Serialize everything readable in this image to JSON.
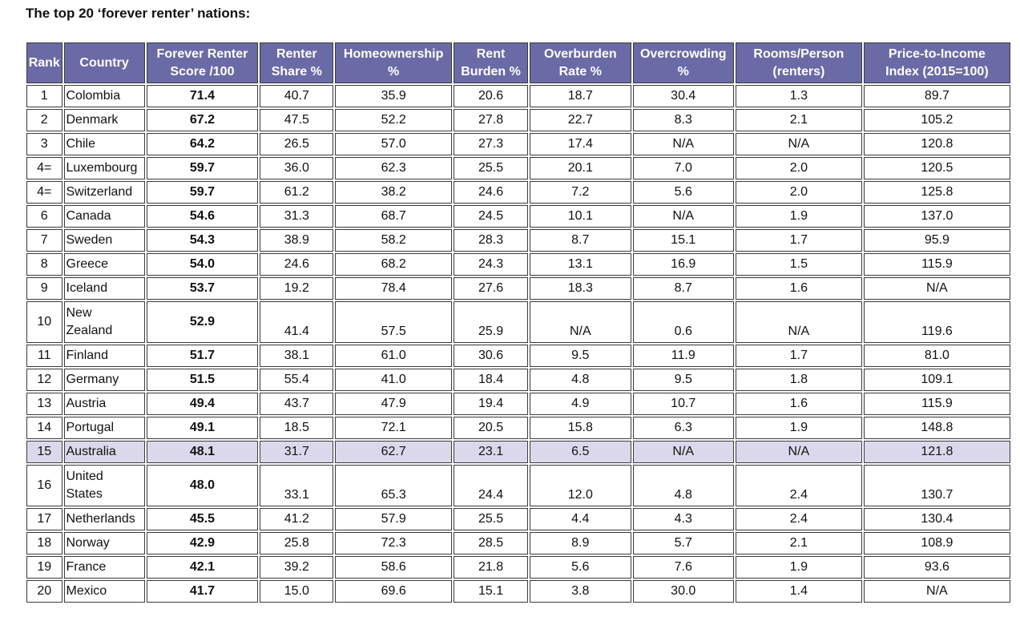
{
  "title": "The top 20 ‘forever renter’ nations:",
  "headers": [
    {
      "line1": "Rank",
      "line2": ""
    },
    {
      "line1": "Country",
      "line2": ""
    },
    {
      "line1": "Forever Renter",
      "line2": "Score /100"
    },
    {
      "line1": "Renter",
      "line2": "Share %"
    },
    {
      "line1": "Homeownership",
      "line2": "%"
    },
    {
      "line1": "Rent",
      "line2": "Burden %"
    },
    {
      "line1": "Overburden",
      "line2": "Rate %"
    },
    {
      "line1": "Overcrowding",
      "line2": "%"
    },
    {
      "line1": "Rooms/Person",
      "line2": "(renters)"
    },
    {
      "line1": "Price-to-Income",
      "line2": "Index (2015=100)"
    }
  ],
  "rows": [
    {
      "rank": "1",
      "country": "Colombia",
      "score": "71.4",
      "renter_share": "40.7",
      "homeownership": "35.9",
      "rent_burden": "20.6",
      "overburden": "18.7",
      "overcrowding": "30.4",
      "rooms": "1.3",
      "pti": "89.7"
    },
    {
      "rank": "2",
      "country": "Denmark",
      "score": "67.2",
      "renter_share": "47.5",
      "homeownership": "52.2",
      "rent_burden": "27.8",
      "overburden": "22.7",
      "overcrowding": "8.3",
      "rooms": "2.1",
      "pti": "105.2"
    },
    {
      "rank": "3",
      "country": "Chile",
      "score": "64.2",
      "renter_share": "26.5",
      "homeownership": "57.0",
      "rent_burden": "27.3",
      "overburden": "17.4",
      "overcrowding": "N/A",
      "rooms": "N/A",
      "pti": "120.8"
    },
    {
      "rank": "4=",
      "country": "Luxembourg",
      "score": "59.7",
      "renter_share": "36.0",
      "homeownership": "62.3",
      "rent_burden": "25.5",
      "overburden": "20.1",
      "overcrowding": "7.0",
      "rooms": "2.0",
      "pti": "120.5"
    },
    {
      "rank": "4=",
      "country": "Switzerland",
      "score": "59.7",
      "renter_share": "61.2",
      "homeownership": "38.2",
      "rent_burden": "24.6",
      "overburden": "7.2",
      "overcrowding": "5.6",
      "rooms": "2.0",
      "pti": "125.8"
    },
    {
      "rank": "6",
      "country": "Canada",
      "score": "54.6",
      "renter_share": "31.3",
      "homeownership": "68.7",
      "rent_burden": "24.5",
      "overburden": "10.1",
      "overcrowding": "N/A",
      "rooms": "1.9",
      "pti": "137.0"
    },
    {
      "rank": "7",
      "country": "Sweden",
      "score": "54.3",
      "renter_share": "38.9",
      "homeownership": "58.2",
      "rent_burden": "28.3",
      "overburden": "8.7",
      "overcrowding": "15.1",
      "rooms": "1.7",
      "pti": "95.9"
    },
    {
      "rank": "8",
      "country": "Greece",
      "score": "54.0",
      "renter_share": "24.6",
      "homeownership": "68.2",
      "rent_burden": "24.3",
      "overburden": "13.1",
      "overcrowding": "16.9",
      "rooms": "1.5",
      "pti": "115.9"
    },
    {
      "rank": "9",
      "country": "Iceland",
      "score": "53.7",
      "renter_share": "19.2",
      "homeownership": "78.4",
      "rent_burden": "27.6",
      "overburden": "18.3",
      "overcrowding": "8.7",
      "rooms": "1.6",
      "pti": "N/A"
    },
    {
      "rank": "10",
      "country_line1": "New",
      "country_line2": "Zealand",
      "score": "52.9",
      "renter_share": "41.4",
      "homeownership": "57.5",
      "rent_burden": "25.9",
      "overburden": "N/A",
      "overcrowding": "0.6",
      "rooms": "N/A",
      "pti": "119.6"
    },
    {
      "rank": "11",
      "country": "Finland",
      "score": "51.7",
      "renter_share": "38.1",
      "homeownership": "61.0",
      "rent_burden": "30.6",
      "overburden": "9.5",
      "overcrowding": "11.9",
      "rooms": "1.7",
      "pti": "81.0"
    },
    {
      "rank": "12",
      "country": "Germany",
      "score": "51.5",
      "renter_share": "55.4",
      "homeownership": "41.0",
      "rent_burden": "18.4",
      "overburden": "4.8",
      "overcrowding": "9.5",
      "rooms": "1.8",
      "pti": "109.1"
    },
    {
      "rank": "13",
      "country": "Austria",
      "score": "49.4",
      "renter_share": "43.7",
      "homeownership": "47.9",
      "rent_burden": "19.4",
      "overburden": "4.9",
      "overcrowding": "10.7",
      "rooms": "1.6",
      "pti": "115.9"
    },
    {
      "rank": "14",
      "country": "Portugal",
      "score": "49.1",
      "renter_share": "18.5",
      "homeownership": "72.1",
      "rent_burden": "20.5",
      "overburden": "15.8",
      "overcrowding": "6.3",
      "rooms": "1.9",
      "pti": "148.8"
    },
    {
      "rank": "15",
      "country": "Australia",
      "score": "48.1",
      "renter_share": "31.7",
      "homeownership": "62.7",
      "rent_burden": "23.1",
      "overburden": "6.5",
      "overcrowding": "N/A",
      "rooms": "N/A",
      "pti": "121.8"
    },
    {
      "rank": "16",
      "country_line1": "United",
      "country_line2": "States",
      "score": "48.0",
      "renter_share": "33.1",
      "homeownership": "65.3",
      "rent_burden": "24.4",
      "overburden": "12.0",
      "overcrowding": "4.8",
      "rooms": "2.4",
      "pti": "130.7"
    },
    {
      "rank": "17",
      "country": "Netherlands",
      "score": "45.5",
      "renter_share": "41.2",
      "homeownership": "57.9",
      "rent_burden": "25.5",
      "overburden": "4.4",
      "overcrowding": "4.3",
      "rooms": "2.4",
      "pti": "130.4"
    },
    {
      "rank": "18",
      "country": "Norway",
      "score": "42.9",
      "renter_share": "25.8",
      "homeownership": "72.3",
      "rent_burden": "28.5",
      "overburden": "8.9",
      "overcrowding": "5.7",
      "rooms": "2.1",
      "pti": "108.9"
    },
    {
      "rank": "19",
      "country": "France",
      "score": "42.1",
      "renter_share": "39.2",
      "homeownership": "58.6",
      "rent_burden": "21.8",
      "overburden": "5.6",
      "overcrowding": "7.6",
      "rooms": "1.9",
      "pti": "93.6"
    },
    {
      "rank": "20",
      "country": "Mexico",
      "score": "41.7",
      "renter_share": "15.0",
      "homeownership": "69.6",
      "rent_burden": "15.1",
      "overburden": "3.8",
      "overcrowding": "30.0",
      "rooms": "1.4",
      "pti": "N/A"
    }
  ],
  "colors": {
    "header_bg": "#6a6aa6",
    "header_text": "#ffffff",
    "highlight_bg": "#dcd8ec"
  }
}
